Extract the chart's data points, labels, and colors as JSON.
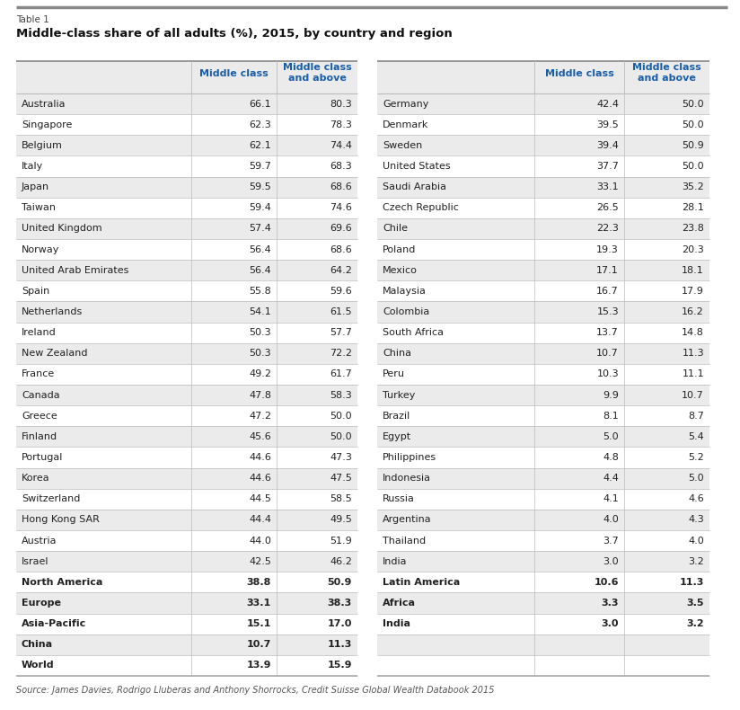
{
  "table_label": "Table 1",
  "title": "Middle-class share of all adults (%), 2015, by country and region",
  "col_header1": "Middle class",
  "col_header2": "Middle class\nand above",
  "source": "Source: James Davies, Rodrigo Lluberas and Anthony Shorrocks, Credit Suisse Global Wealth Databook 2015",
  "left_rows": [
    [
      "Australia",
      "66.1",
      "80.3"
    ],
    [
      "Singapore",
      "62.3",
      "78.3"
    ],
    [
      "Belgium",
      "62.1",
      "74.4"
    ],
    [
      "Italy",
      "59.7",
      "68.3"
    ],
    [
      "Japan",
      "59.5",
      "68.6"
    ],
    [
      "Taiwan",
      "59.4",
      "74.6"
    ],
    [
      "United Kingdom",
      "57.4",
      "69.6"
    ],
    [
      "Norway",
      "56.4",
      "68.6"
    ],
    [
      "United Arab Emirates",
      "56.4",
      "64.2"
    ],
    [
      "Spain",
      "55.8",
      "59.6"
    ],
    [
      "Netherlands",
      "54.1",
      "61.5"
    ],
    [
      "Ireland",
      "50.3",
      "57.7"
    ],
    [
      "New Zealand",
      "50.3",
      "72.2"
    ],
    [
      "France",
      "49.2",
      "61.7"
    ],
    [
      "Canada",
      "47.8",
      "58.3"
    ],
    [
      "Greece",
      "47.2",
      "50.0"
    ],
    [
      "Finland",
      "45.6",
      "50.0"
    ],
    [
      "Portugal",
      "44.6",
      "47.3"
    ],
    [
      "Korea",
      "44.6",
      "47.5"
    ],
    [
      "Switzerland",
      "44.5",
      "58.5"
    ],
    [
      "Hong Kong SAR",
      "44.4",
      "49.5"
    ],
    [
      "Austria",
      "44.0",
      "51.9"
    ],
    [
      "Israel",
      "42.5",
      "46.2"
    ],
    [
      "North America",
      "38.8",
      "50.9"
    ],
    [
      "Europe",
      "33.1",
      "38.3"
    ],
    [
      "Asia-Pacific",
      "15.1",
      "17.0"
    ],
    [
      "China",
      "10.7",
      "11.3"
    ],
    [
      "World",
      "13.9",
      "15.9"
    ]
  ],
  "right_rows": [
    [
      "Germany",
      "42.4",
      "50.0"
    ],
    [
      "Denmark",
      "39.5",
      "50.0"
    ],
    [
      "Sweden",
      "39.4",
      "50.9"
    ],
    [
      "United States",
      "37.7",
      "50.0"
    ],
    [
      "Saudi Arabia",
      "33.1",
      "35.2"
    ],
    [
      "Czech Republic",
      "26.5",
      "28.1"
    ],
    [
      "Chile",
      "22.3",
      "23.8"
    ],
    [
      "Poland",
      "19.3",
      "20.3"
    ],
    [
      "Mexico",
      "17.1",
      "18.1"
    ],
    [
      "Malaysia",
      "16.7",
      "17.9"
    ],
    [
      "Colombia",
      "15.3",
      "16.2"
    ],
    [
      "South Africa",
      "13.7",
      "14.8"
    ],
    [
      "China",
      "10.7",
      "11.3"
    ],
    [
      "Peru",
      "10.3",
      "11.1"
    ],
    [
      "Turkey",
      "9.9",
      "10.7"
    ],
    [
      "Brazil",
      "8.1",
      "8.7"
    ],
    [
      "Egypt",
      "5.0",
      "5.4"
    ],
    [
      "Philippines",
      "4.8",
      "5.2"
    ],
    [
      "Indonesia",
      "4.4",
      "5.0"
    ],
    [
      "Russia",
      "4.1",
      "4.6"
    ],
    [
      "Argentina",
      "4.0",
      "4.3"
    ],
    [
      "Thailand",
      "3.7",
      "4.0"
    ],
    [
      "India",
      "3.0",
      "3.2"
    ],
    [
      "Latin America",
      "10.6",
      "11.3"
    ],
    [
      "Africa",
      "3.3",
      "3.5"
    ],
    [
      "India",
      "3.0",
      "3.2"
    ],
    [
      "",
      "",
      ""
    ],
    [
      "",
      "",
      ""
    ]
  ],
  "bg_color": "#ffffff",
  "stripe_color": "#ebebeb",
  "header_color": "#1a5ea8",
  "text_color": "#222222",
  "line_color": "#bbbbbb",
  "top_line_color": "#888888",
  "bottom_line_color": "#aaaaaa"
}
